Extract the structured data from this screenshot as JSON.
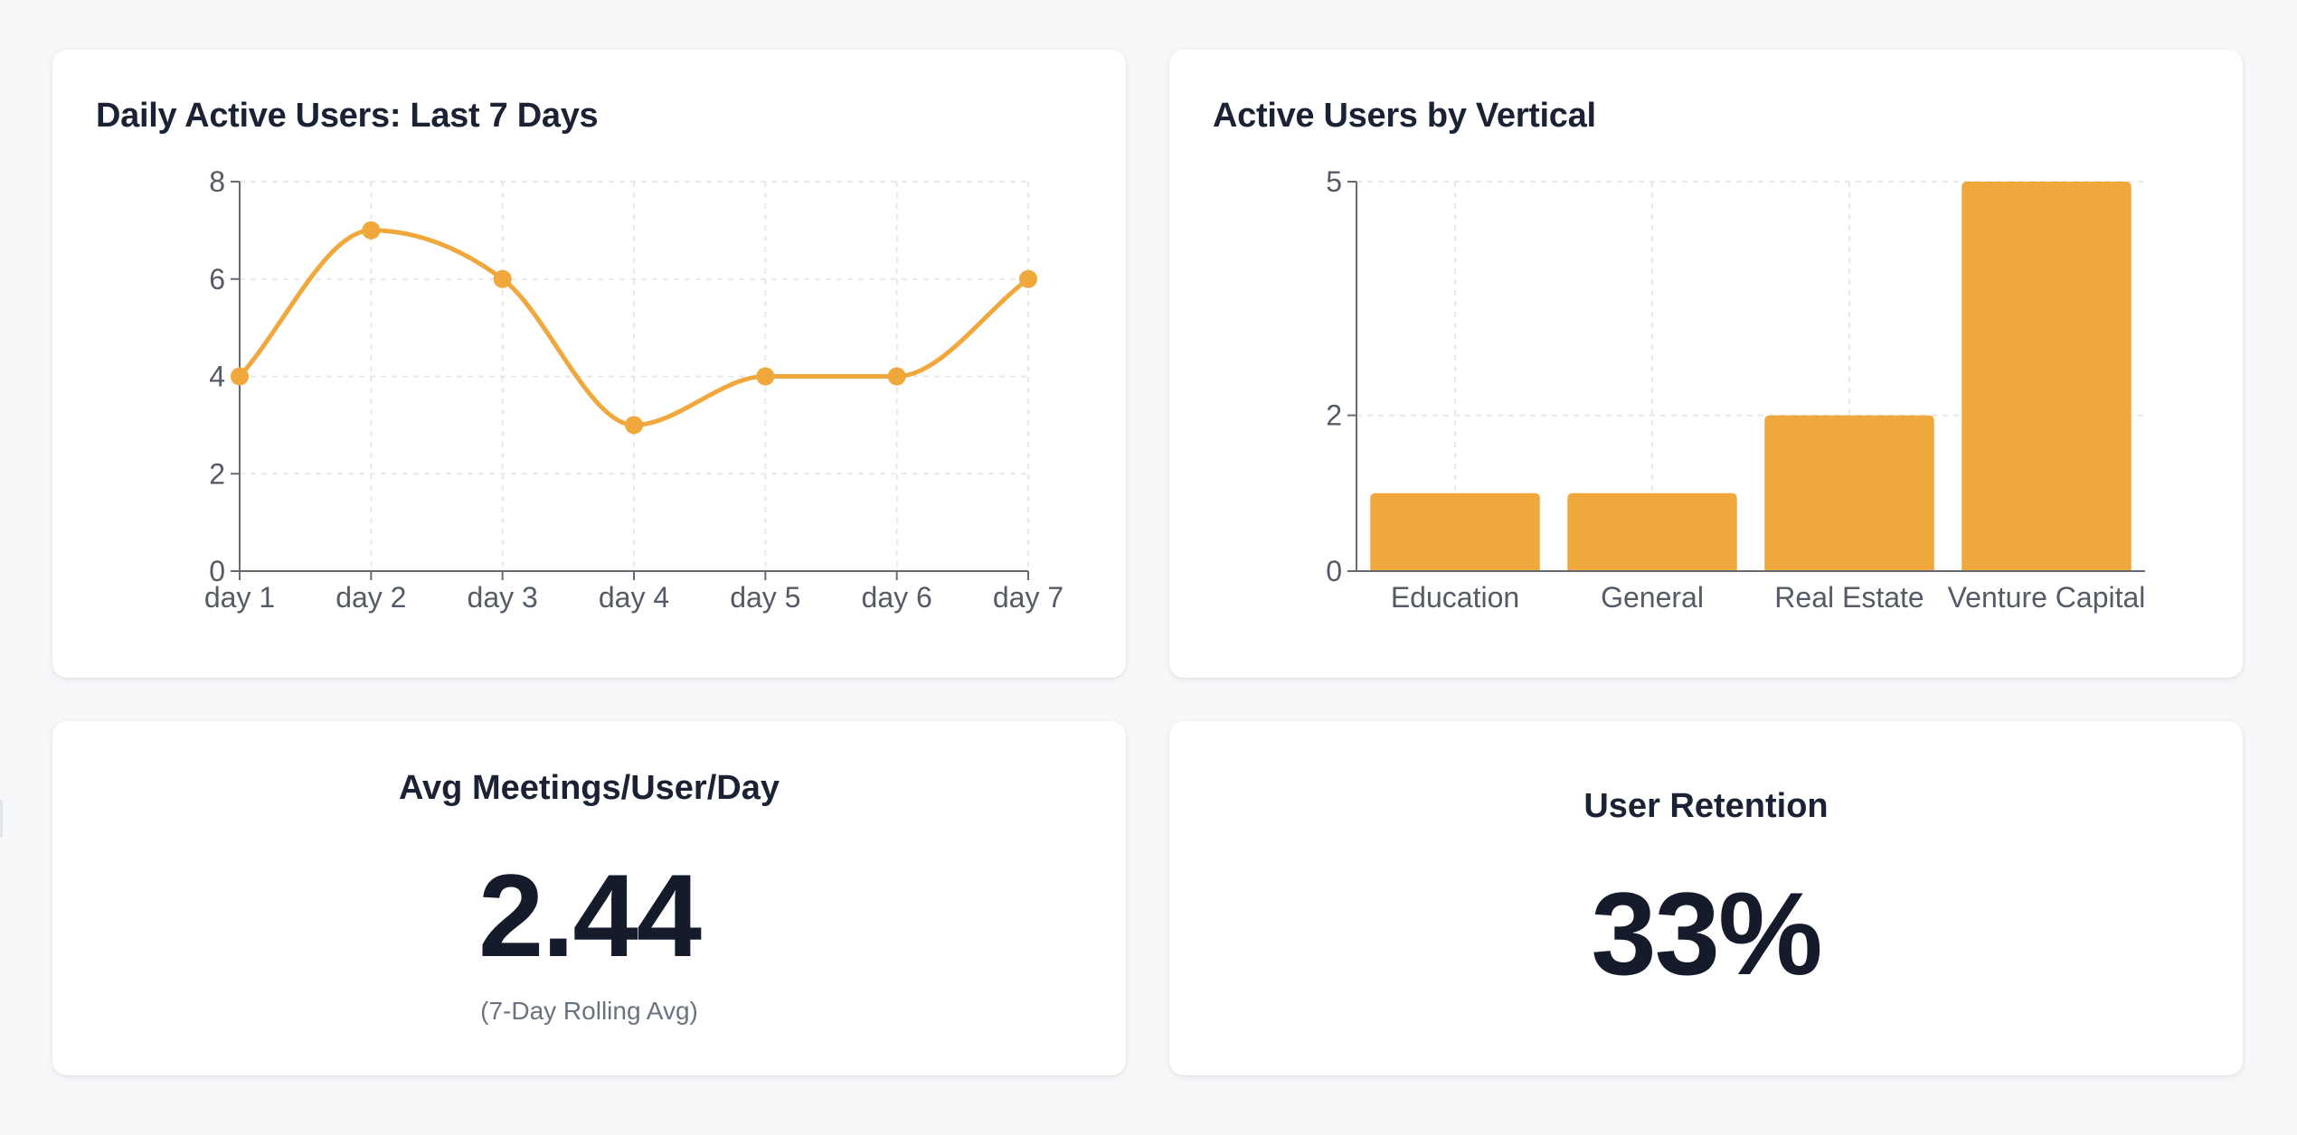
{
  "colors": {
    "accent": "#F0A83C",
    "background": "#F7F8FA",
    "card": "#FFFFFF",
    "text": "#1A2233"
  },
  "dau_card": {
    "title": "Daily Active Users: Last 7 Days"
  },
  "vertical_card": {
    "title": "Active Users by Vertical"
  },
  "meetings_card": {
    "title": "Avg Meetings/User/Day",
    "value": "2.44",
    "note": "(7-Day Rolling Avg)"
  },
  "retention_card": {
    "title": "User Retention",
    "value": "33%"
  },
  "chart_data": [
    {
      "type": "line",
      "title": "Daily Active Users: Last 7 Days",
      "categories": [
        "day 1",
        "day 2",
        "day 3",
        "day 4",
        "day 5",
        "day 6",
        "day 7"
      ],
      "values": [
        4,
        7,
        6,
        3,
        4,
        4,
        6
      ],
      "y_ticks": [
        "0",
        "2",
        "4",
        "6",
        "8"
      ],
      "ylim": [
        0,
        8
      ],
      "grid": true,
      "curve": "smooth",
      "color": "#F0A83C"
    },
    {
      "type": "bar",
      "title": "Active Users by Vertical",
      "categories": [
        "Education",
        "General",
        "Real Estate",
        "Venture Capital"
      ],
      "values": [
        1,
        1,
        2,
        5
      ],
      "y_ticks": [
        "0",
        "2",
        "5"
      ],
      "ylim": [
        0,
        5
      ],
      "grid": true,
      "color": "#F0A83C"
    }
  ]
}
